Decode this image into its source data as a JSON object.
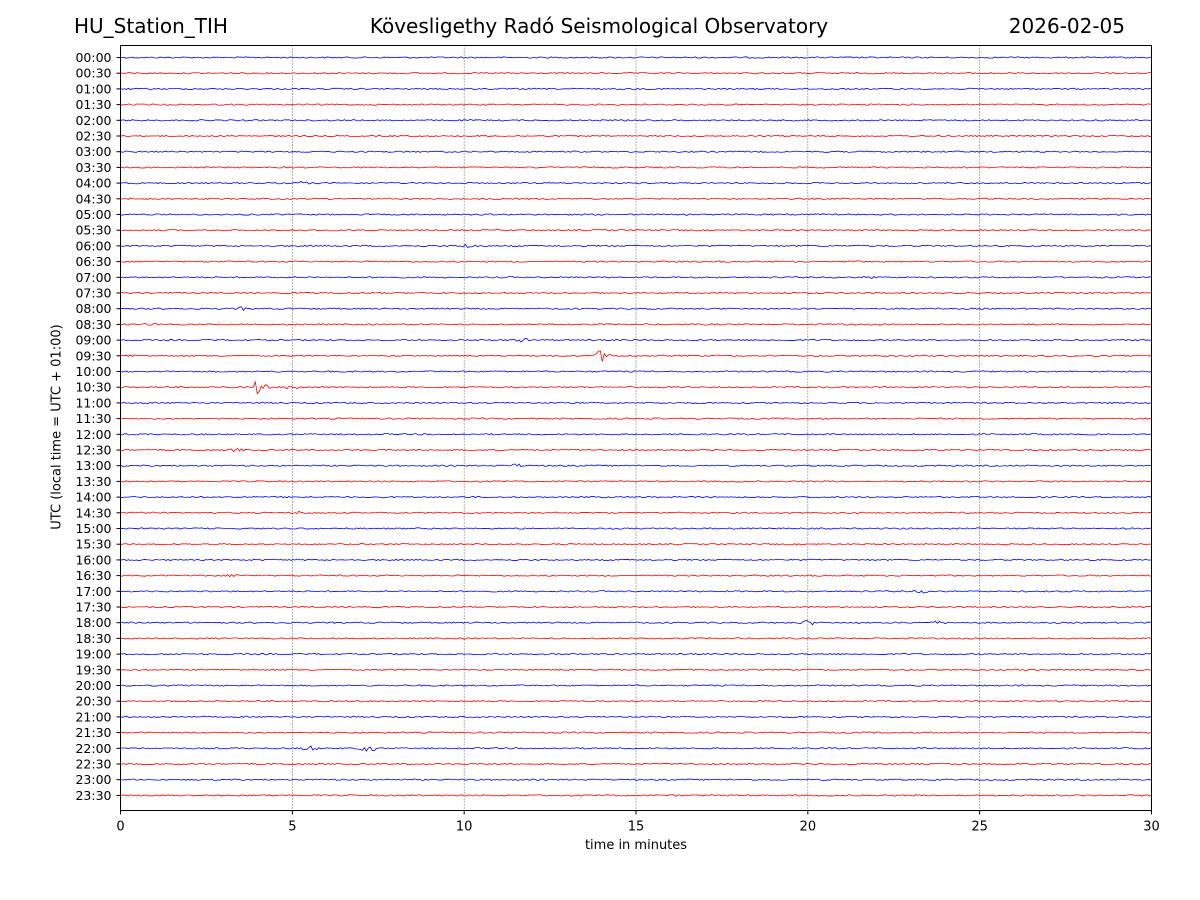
{
  "header": {
    "station": "HU_Station_TIH",
    "observatory": "Kövesligethy Radó Seismological Observatory",
    "date": "2026-02-05"
  },
  "chart_data": {
    "type": "line",
    "title": "Kövesligethy Radó Seismological Observatory",
    "xlabel": "time in minutes",
    "ylabel": "UTC (local time = UTC + 01:00)",
    "xlim": [
      0,
      30
    ],
    "x_ticks": [
      0,
      5,
      10,
      15,
      20,
      25,
      30
    ],
    "grid": "vertical dotted at 5-minute ticks",
    "row_labels": [
      "00:00",
      "00:30",
      "01:00",
      "01:30",
      "02:00",
      "02:30",
      "03:00",
      "03:30",
      "04:00",
      "04:30",
      "05:00",
      "05:30",
      "06:00",
      "06:30",
      "07:00",
      "07:30",
      "08:00",
      "08:30",
      "09:00",
      "09:30",
      "10:00",
      "10:30",
      "11:00",
      "11:30",
      "12:00",
      "12:30",
      "13:00",
      "13:30",
      "14:00",
      "14:30",
      "15:00",
      "15:30",
      "16:00",
      "16:30",
      "17:00",
      "17:30",
      "18:00",
      "18:30",
      "19:00",
      "19:30",
      "20:00",
      "20:30",
      "21:00",
      "21:30",
      "22:00",
      "22:30",
      "23:00",
      "23:30"
    ],
    "series_colors": [
      "#0000ff",
      "#ff0000"
    ],
    "events": [
      {
        "row": "04:00",
        "minute": 5.3,
        "amplitude": 2
      },
      {
        "row": "06:00",
        "minute": 10.2,
        "amplitude": 3
      },
      {
        "row": "07:00",
        "minute": 21.8,
        "amplitude": 2
      },
      {
        "row": "08:00",
        "minute": 3.5,
        "amplitude": 2
      },
      {
        "row": "08:30",
        "minute": 0.9,
        "amplitude": 2
      },
      {
        "row": "09:00",
        "minute": 11.7,
        "amplitude": 2
      },
      {
        "row": "09:30",
        "minute": 0.4,
        "amplitude": 2
      },
      {
        "row": "09:30",
        "minute": 14.0,
        "amplitude": 6
      },
      {
        "row": "10:30",
        "minute": 4.0,
        "amplitude": 7
      },
      {
        "row": "10:30",
        "minute": 5.0,
        "amplitude": 3
      },
      {
        "row": "12:30",
        "minute": 3.4,
        "amplitude": 2
      },
      {
        "row": "13:00",
        "minute": 11.5,
        "amplitude": 2
      },
      {
        "row": "14:30",
        "minute": 5.2,
        "amplitude": 2
      },
      {
        "row": "16:30",
        "minute": 3.3,
        "amplitude": 2
      },
      {
        "row": "17:00",
        "minute": 23.3,
        "amplitude": 2
      },
      {
        "row": "18:00",
        "minute": 20.0,
        "amplitude": 3
      },
      {
        "row": "18:00",
        "minute": 23.8,
        "amplitude": 2
      },
      {
        "row": "22:00",
        "minute": 5.5,
        "amplitude": 3
      },
      {
        "row": "22:00",
        "minute": 7.2,
        "amplitude": 4
      }
    ]
  }
}
